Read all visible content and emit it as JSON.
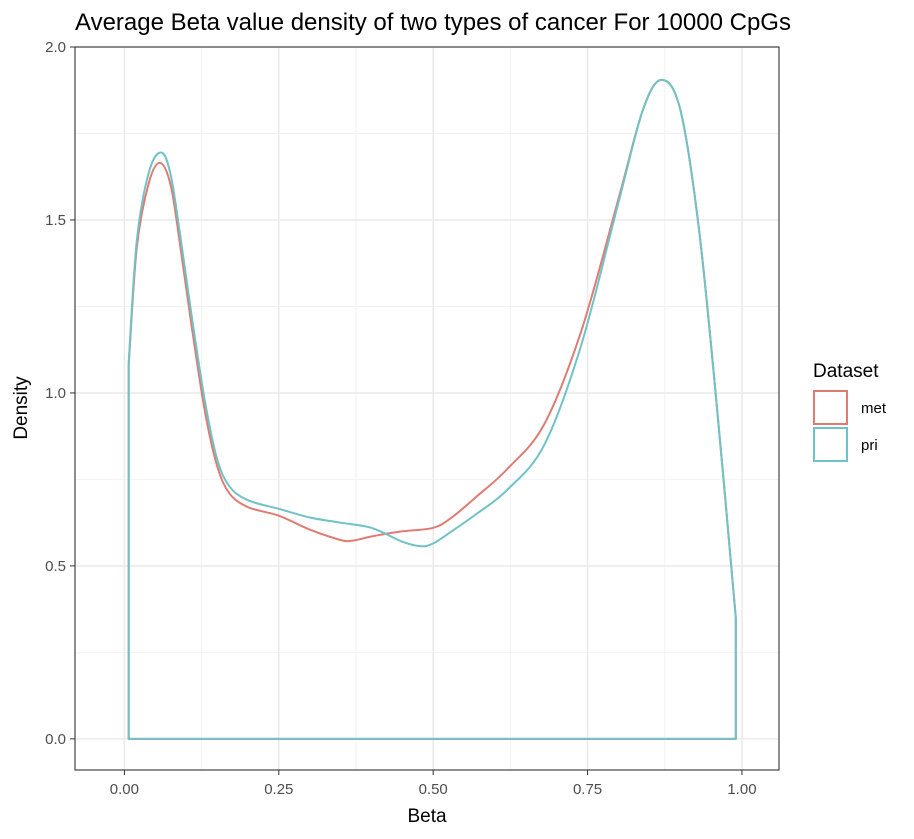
{
  "chart_data": {
    "type": "line",
    "title": "Average Beta value density of two types of cancer For 10000 CpGs",
    "xlabel": "Beta",
    "ylabel": "Density",
    "xlim": [
      -0.08,
      1.06
    ],
    "ylim": [
      -0.09,
      2.0
    ],
    "x_ticks": [
      0.0,
      0.25,
      0.5,
      0.75,
      1.0
    ],
    "x_tick_labels": [
      "0.00",
      "0.25",
      "0.50",
      "0.75",
      "1.00"
    ],
    "y_ticks": [
      0.0,
      0.5,
      1.0,
      1.5,
      2.0
    ],
    "y_tick_labels": [
      "0.0",
      "0.5",
      "1.0",
      "1.5",
      "2.0"
    ],
    "grid": true,
    "legend": {
      "title": "Dataset",
      "position": "right"
    },
    "series": [
      {
        "name": "met",
        "color": "#e07b73",
        "x": [
          0.007,
          0.02,
          0.04,
          0.058,
          0.075,
          0.09,
          0.11,
          0.13,
          0.15,
          0.17,
          0.2,
          0.25,
          0.3,
          0.35,
          0.37,
          0.4,
          0.45,
          0.5,
          0.53,
          0.57,
          0.62,
          0.68,
          0.74,
          0.8,
          0.84,
          0.87,
          0.9,
          0.93,
          0.96,
          0.99
        ],
        "y": [
          1.08,
          1.42,
          1.61,
          1.665,
          1.6,
          1.43,
          1.18,
          0.95,
          0.79,
          0.71,
          0.67,
          0.645,
          0.605,
          0.575,
          0.573,
          0.585,
          0.6,
          0.61,
          0.64,
          0.7,
          0.78,
          0.91,
          1.18,
          1.56,
          1.82,
          1.905,
          1.82,
          1.48,
          0.95,
          0.35
        ]
      },
      {
        "name": "pri",
        "color": "#6fc2c7",
        "x": [
          0.007,
          0.02,
          0.04,
          0.06,
          0.075,
          0.09,
          0.11,
          0.13,
          0.15,
          0.17,
          0.2,
          0.25,
          0.3,
          0.35,
          0.4,
          0.45,
          0.48,
          0.5,
          0.53,
          0.57,
          0.62,
          0.68,
          0.74,
          0.8,
          0.84,
          0.87,
          0.9,
          0.93,
          0.96,
          0.99
        ],
        "y": [
          1.09,
          1.44,
          1.64,
          1.695,
          1.63,
          1.46,
          1.21,
          0.98,
          0.81,
          0.73,
          0.69,
          0.665,
          0.64,
          0.625,
          0.61,
          0.57,
          0.557,
          0.565,
          0.6,
          0.65,
          0.72,
          0.85,
          1.14,
          1.55,
          1.82,
          1.905,
          1.82,
          1.48,
          0.95,
          0.35
        ]
      }
    ]
  }
}
